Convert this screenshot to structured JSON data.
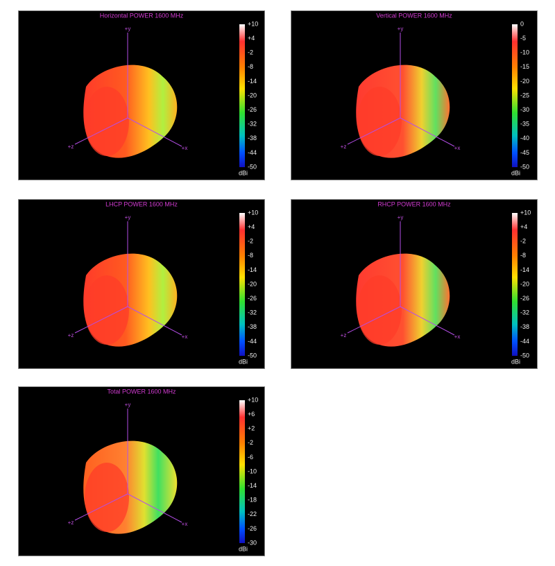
{
  "panels": [
    {
      "title": "Horizontal POWER 1600  MHz",
      "axes": [
        "+y",
        "+z",
        "+x"
      ],
      "unit": "dBi",
      "colorbar_ticks": [
        "+10",
        "+4",
        "-2",
        "-8",
        "-14",
        "-20",
        "-26",
        "-32",
        "-38",
        "-44",
        "-50"
      ]
    },
    {
      "title": "Vertical POWER 1600  MHz",
      "axes": [
        "+y",
        "+z",
        "+x"
      ],
      "unit": "dBi",
      "colorbar_ticks": [
        "0",
        "-5",
        "-10",
        "-15",
        "-20",
        "-25",
        "-30",
        "-35",
        "-40",
        "-45",
        "-50"
      ]
    },
    {
      "title": "LHCP POWER 1600  MHz",
      "axes": [
        "+y",
        "+z",
        "+x"
      ],
      "unit": "dBi",
      "colorbar_ticks": [
        "+10",
        "+4",
        "-2",
        "-8",
        "-14",
        "-20",
        "-26",
        "-32",
        "-38",
        "-44",
        "-50"
      ]
    },
    {
      "title": "RHCP POWER 1600  MHz",
      "axes": [
        "+y",
        "+z",
        "+x"
      ],
      "unit": "dBi",
      "colorbar_ticks": [
        "+10",
        "+4",
        "-2",
        "-8",
        "-14",
        "-20",
        "-26",
        "-32",
        "-38",
        "-44",
        "-50"
      ]
    },
    {
      "title": "Total POWER 1600  MHz",
      "axes": [
        "+y",
        "+z",
        "+x"
      ],
      "unit": "dBi",
      "colorbar_ticks": [
        "+10",
        "+6",
        "+2",
        "-2",
        "-6",
        "-10",
        "-14",
        "-18",
        "-22",
        "-26",
        "-30"
      ]
    }
  ]
}
